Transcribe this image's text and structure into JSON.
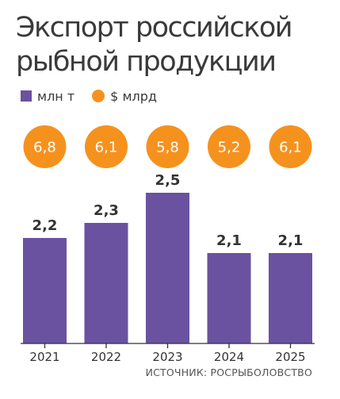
{
  "title_lines": [
    "Экспорт российской",
    "рыбной продукции"
  ],
  "legend": {
    "volume_label": "млн т",
    "value_label": "$ млрд"
  },
  "source": "ИСТОЧНИК: РОСРЫБОЛОВСТВО",
  "colors": {
    "bar": "#6a52a0",
    "circle": "#f5921e",
    "axis": "#333333",
    "text": "#333333"
  },
  "chart_data": {
    "type": "bar",
    "title": "Экспорт российской рыбной продукции",
    "categories": [
      "2021",
      "2022",
      "2023",
      "2024",
      "2025"
    ],
    "series": [
      {
        "name": "млн т",
        "values": [
          2.2,
          2.3,
          2.5,
          2.1,
          2.1
        ],
        "labels": [
          "2,2",
          "2,3",
          "2,5",
          "2,1",
          "2,1"
        ]
      },
      {
        "name": "$ млрд",
        "values": [
          6.8,
          6.1,
          5.8,
          5.2,
          6.1
        ],
        "labels": [
          "6,8",
          "6,1",
          "5,8",
          "5,2",
          "6,1"
        ]
      }
    ],
    "ylim": [
      1.5,
      2.5
    ],
    "legend_position": "top-left",
    "grid": false
  }
}
